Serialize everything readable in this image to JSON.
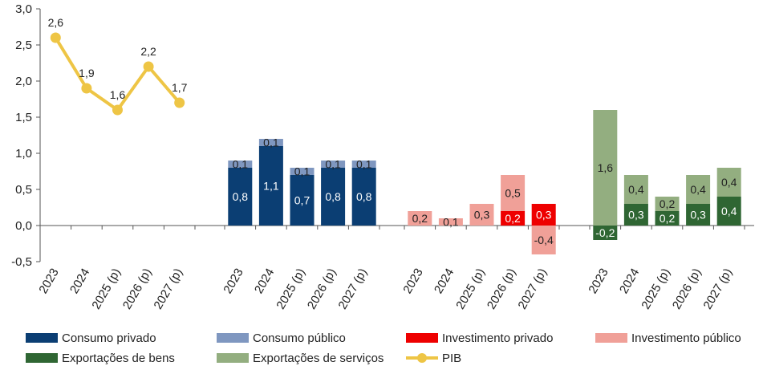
{
  "chart_data": {
    "type": "bar",
    "title": "",
    "xlabel": "",
    "ylabel": "",
    "ylim": [
      -0.5,
      3.0
    ],
    "yticks": [
      "-0,5",
      "0,0",
      "0,5",
      "1,0",
      "1,5",
      "2,0",
      "2,5",
      "3,0"
    ],
    "grid": false,
    "legend_position": "bottom",
    "groups": [
      {
        "categories": [
          "2023",
          "2024",
          "2025 (p)",
          "2026 (p)",
          "2027 (p)"
        ],
        "series": [
          {
            "name": "PIB",
            "kind": "line",
            "color": "#eec545",
            "values": [
              2.6,
              1.9,
              1.6,
              2.2,
              1.7
            ],
            "labels": [
              "2,6",
              "1,9",
              "1,6",
              "2,2",
              "1,7"
            ]
          }
        ]
      },
      {
        "categories": [
          "2023",
          "2024",
          "2025 (p)",
          "2026 (p)",
          "2027 (p)"
        ],
        "series": [
          {
            "name": "Consumo privado",
            "color": "#0b3e73",
            "values": [
              0.8,
              1.1,
              0.7,
              0.8,
              0.8
            ],
            "labels": [
              "0,8",
              "1,1",
              "0,7",
              "0,8",
              "0,8"
            ]
          },
          {
            "name": "Consumo público",
            "color": "#7f97c0",
            "values": [
              0.1,
              0.1,
              0.1,
              0.1,
              0.1
            ],
            "labels": [
              "0,1",
              "0,1",
              "0,1",
              "0,1",
              "0,1"
            ]
          }
        ]
      },
      {
        "categories": [
          "2023",
          "2024",
          "2025 (p)",
          "2026 (p)",
          "2027 (p)"
        ],
        "series": [
          {
            "name": "Investimento privado",
            "color": "#ee0000",
            "values": [
              0.0,
              0.0,
              0.0,
              0.2,
              0.3
            ],
            "labels": [
              "",
              "",
              "",
              "0,2",
              "0,3"
            ]
          },
          {
            "name": "Investimento público",
            "color": "#f0a098",
            "values": [
              0.2,
              0.1,
              0.3,
              0.5,
              -0.4
            ],
            "labels": [
              "0,2",
              "0,1",
              "0,3",
              "0,5",
              "-0,4"
            ]
          }
        ]
      },
      {
        "categories": [
          "2023",
          "2024",
          "2025 (p)",
          "2026 (p)",
          "2027 (p)"
        ],
        "series": [
          {
            "name": "Exportações de bens",
            "color": "#2f6633",
            "values": [
              -0.2,
              0.3,
              0.2,
              0.3,
              0.4
            ],
            "labels": [
              "-0,2",
              "0,3",
              "0,2",
              "0,3",
              "0,4"
            ]
          },
          {
            "name": "Exportações de serviços",
            "color": "#93ae80",
            "values": [
              1.6,
              0.4,
              0.2,
              0.4,
              0.4
            ],
            "labels": [
              "1,6",
              "0,4",
              "0,2",
              "0,4",
              "0,4"
            ]
          }
        ]
      }
    ],
    "legend": [
      {
        "name": "Consumo privado",
        "color": "#0b3e73",
        "kind": "bar"
      },
      {
        "name": "Consumo público",
        "color": "#7f97c0",
        "kind": "bar"
      },
      {
        "name": "Investimento privado",
        "color": "#ee0000",
        "kind": "bar"
      },
      {
        "name": "Investimento público",
        "color": "#f0a098",
        "kind": "bar"
      },
      {
        "name": "Exportações de bens",
        "color": "#2f6633",
        "kind": "bar"
      },
      {
        "name": "Exportações de serviços",
        "color": "#93ae80",
        "kind": "bar"
      },
      {
        "name": "PIB",
        "color": "#eec545",
        "kind": "line"
      }
    ]
  }
}
